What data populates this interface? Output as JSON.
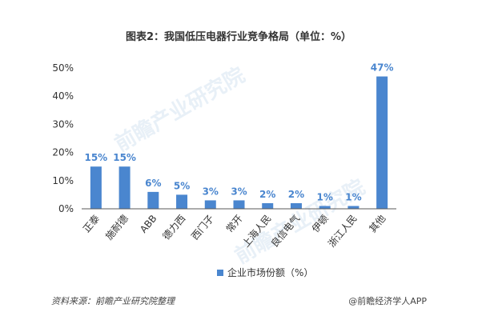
{
  "chart_data": {
    "type": "bar",
    "title": "图表2：我国低压电器行业竞争格局（单位：%）",
    "categories": [
      "正泰",
      "施耐德",
      "ABB",
      "德力西",
      "西门子",
      "常开",
      "上海人民",
      "良信电气",
      "伊顿",
      "浙江人民",
      "其他"
    ],
    "series": [
      {
        "name": "企业市场份额（%）",
        "values": [
          15,
          15,
          6,
          5,
          3,
          3,
          2,
          2,
          1,
          1,
          47
        ]
      }
    ],
    "data_labels": [
      "15%",
      "15%",
      "6%",
      "5%",
      "3%",
      "3%",
      "2%",
      "2%",
      "1%",
      "1%",
      "47%"
    ],
    "y_ticks": [
      "0%",
      "10%",
      "20%",
      "30%",
      "40%",
      "50%"
    ],
    "ylim": [
      0,
      50
    ],
    "grid": false,
    "legend": "bottom",
    "colors": {
      "bar": "#4a86cf",
      "label": "#4a86cf",
      "axis": "#595959"
    }
  },
  "footer": {
    "source": "资料来源：前瞻产业研究院整理",
    "credit": "@前瞻经济学人APP"
  },
  "watermark": {
    "text": "前瞻产业研究院"
  }
}
